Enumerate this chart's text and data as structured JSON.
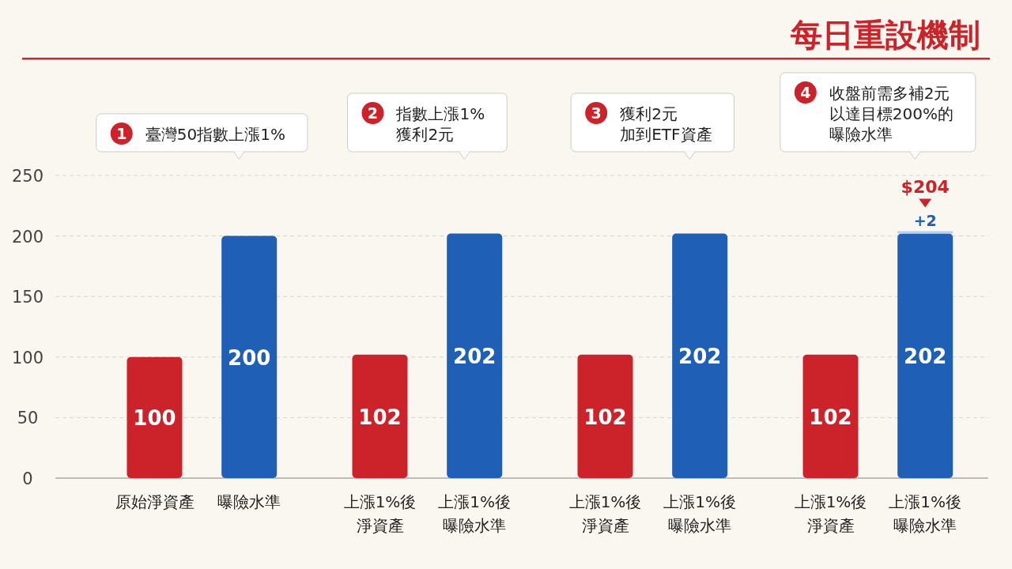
{
  "chart_data": {
    "type": "bar",
    "stacked": true,
    "title": "每日重設機制",
    "categories": [
      "原始淨資產",
      "曝險水準",
      "上漲1%後淨資產",
      "上漲1%後曝險水準",
      "上漲1%後淨資產",
      "上漲1%後曝險水準",
      "上漲1%後淨資產",
      "上漲1%後曝險水準"
    ],
    "series": [
      {
        "colors": [
          "#cc2229",
          "#1f5fb5",
          "#cc2229",
          "#1f5fb5",
          "#cc2229",
          "#1f5fb5",
          "#cc2229",
          "#1f5fb5"
        ],
        "values": [
          100,
          200,
          102,
          202,
          102,
          202,
          102,
          202
        ],
        "value_labels": [
          "100",
          "200",
          "102",
          "202",
          "102",
          "202",
          "102",
          "202"
        ]
      },
      {
        "color": "#b9d0ef",
        "values": [
          null,
          null,
          null,
          null,
          null,
          null,
          null,
          2
        ],
        "value_labels": [
          null,
          null,
          null,
          null,
          null,
          null,
          null,
          "+2"
        ]
      }
    ],
    "totals": [
      null,
      null,
      null,
      null,
      null,
      null,
      null,
      "$204"
    ],
    "annotations": [
      "1",
      "臺灣50指數上漲1%",
      "2",
      "指數上漲1%",
      "獲利2元",
      "3",
      "獲利2元",
      "加到ETF資產",
      "4",
      "收盤前需多補2元",
      "以達目標200%的",
      "曝險水準"
    ],
    "ylim": [
      0,
      250
    ],
    "yticks": [
      0,
      50,
      100,
      150,
      200,
      250
    ],
    "grid": "y"
  }
}
